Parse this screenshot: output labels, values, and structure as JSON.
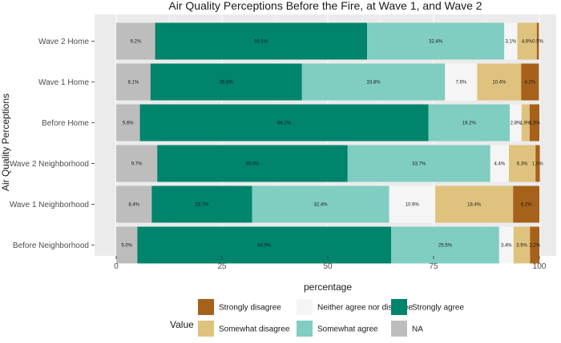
{
  "chart_data": {
    "type": "bar",
    "orientation": "horizontal",
    "stacked": true,
    "title": "Air Quality Perceptions Before the Fire, at Wave 1, and Wave 2",
    "xlabel": "percentage",
    "ylabel": "Air Quality Perceptions",
    "xlim": [
      0,
      100
    ],
    "xticks": [
      0,
      25,
      50,
      75,
      100
    ],
    "grid": true,
    "legend_position": "bottom",
    "legend_title": "Value",
    "categories": [
      "Wave 2 Home",
      "Wave 1 Home",
      "Before Home",
      "Wave 2 Neighborhood",
      "Wave 1 Neighborhood",
      "Before Neighborhood"
    ],
    "series": [
      {
        "name": "NA",
        "color": "#bdbdbd",
        "values": [
          9.2,
          8.1,
          5.6,
          9.7,
          8.4,
          5.0
        ],
        "labels": [
          "9.2%",
          "8.1%",
          "5.6%",
          "9.7%",
          "8.4%",
          "5.0%"
        ]
      },
      {
        "name": "Strongly agree",
        "color": "#01846c",
        "values": [
          50.1,
          35.8,
          68.2,
          45.0,
          23.7,
          60.0
        ],
        "labels": [
          "50.1%",
          "35.8%",
          "68.2%",
          "45.0%",
          "23.7%",
          "60.0%"
        ]
      },
      {
        "name": "Somewhat agree",
        "color": "#80cdc1",
        "values": [
          32.4,
          33.8,
          19.2,
          33.7,
          32.4,
          25.5
        ],
        "labels": [
          "32.4%",
          "33.8%",
          "19.2%",
          "33.7%",
          "32.4%",
          "25.5%"
        ]
      },
      {
        "name": "Neither agree nor disagree",
        "color": "#f5f5f5",
        "values": [
          3.1,
          7.6,
          2.8,
          4.4,
          10.9,
          3.4
        ],
        "labels": [
          "3.1%",
          "7.6%",
          "2.8%",
          "4.4%",
          "10.9%",
          "3.4%"
        ]
      },
      {
        "name": "Somewhat disagree",
        "color": "#dfc27d",
        "values": [
          4.6,
          10.4,
          1.9,
          6.3,
          18.4,
          3.9
        ],
        "labels": [
          "4.6%",
          "10.4%",
          "1.9%",
          "6.3%",
          "18.4%",
          "3.9%"
        ]
      },
      {
        "name": "Strongly disagree",
        "color": "#a6611a",
        "values": [
          0.5,
          4.2,
          2.3,
          1.0,
          6.2,
          2.2
        ],
        "labels": [
          "0.5%",
          "4.2%",
          "2.3%",
          "1.0%",
          "6.2%",
          "2.2%"
        ]
      }
    ],
    "legend_layout": [
      [
        "Strongly disagree",
        "Neither agree nor disagree",
        "Strongly agree"
      ],
      [
        "Somewhat disagree",
        "Somewhat agree",
        "NA"
      ]
    ]
  }
}
